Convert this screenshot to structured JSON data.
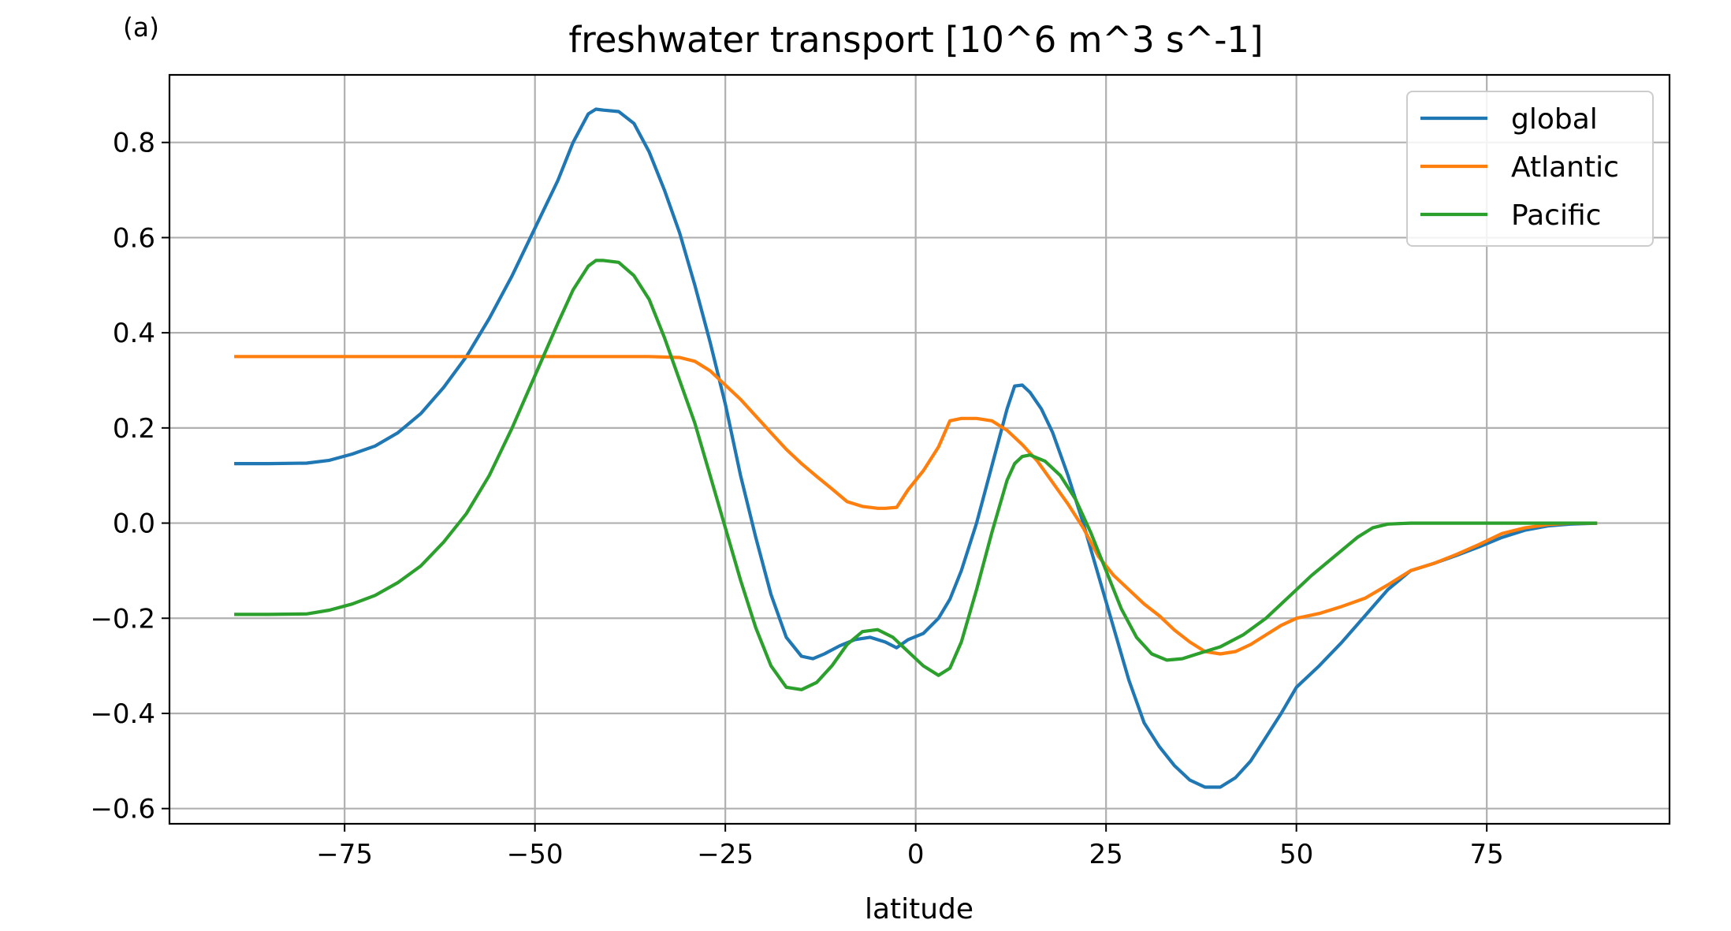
{
  "panel_label": "(a)",
  "chart_data": {
    "type": "line",
    "title": "freshwater transport [10^6 m^3 s^-1]",
    "xlabel": "latitude",
    "ylabel": "",
    "xlim": [
      -98,
      99
    ],
    "ylim": [
      -0.632,
      0.942
    ],
    "xticks": [
      -75,
      -50,
      -25,
      0,
      25,
      50,
      75
    ],
    "yticks": [
      -0.6,
      -0.4,
      -0.2,
      0.0,
      0.2,
      0.4,
      0.6,
      0.8
    ],
    "xtick_labels": [
      "−75",
      "−50",
      "−25",
      "0",
      "25",
      "50",
      "75"
    ],
    "ytick_labels": [
      "−0.6",
      "−0.4",
      "−0.2",
      "0.0",
      "0.2",
      "0.4",
      "0.6",
      "0.8"
    ],
    "grid": true,
    "legend_position": "top-right",
    "series": [
      {
        "name": "global",
        "color": "#1f77b4",
        "points": [
          [
            -89.5,
            0.125
          ],
          [
            -85,
            0.125
          ],
          [
            -80,
            0.126
          ],
          [
            -77,
            0.132
          ],
          [
            -74,
            0.145
          ],
          [
            -71,
            0.162
          ],
          [
            -68,
            0.19
          ],
          [
            -65,
            0.23
          ],
          [
            -62,
            0.285
          ],
          [
            -59,
            0.35
          ],
          [
            -56,
            0.43
          ],
          [
            -53,
            0.52
          ],
          [
            -50,
            0.62
          ],
          [
            -47,
            0.72
          ],
          [
            -45,
            0.8
          ],
          [
            -43,
            0.86
          ],
          [
            -42,
            0.87
          ],
          [
            -41,
            0.868
          ],
          [
            -39,
            0.865
          ],
          [
            -37,
            0.84
          ],
          [
            -35,
            0.78
          ],
          [
            -33,
            0.7
          ],
          [
            -31,
            0.61
          ],
          [
            -29,
            0.5
          ],
          [
            -27,
            0.38
          ],
          [
            -25,
            0.25
          ],
          [
            -23,
            0.1
          ],
          [
            -21,
            -0.03
          ],
          [
            -19,
            -0.15
          ],
          [
            -17,
            -0.24
          ],
          [
            -15,
            -0.28
          ],
          [
            -13.5,
            -0.285
          ],
          [
            -12,
            -0.275
          ],
          [
            -10,
            -0.258
          ],
          [
            -8,
            -0.245
          ],
          [
            -6,
            -0.24
          ],
          [
            -4,
            -0.25
          ],
          [
            -2.5,
            -0.262
          ],
          [
            -1,
            -0.245
          ],
          [
            1,
            -0.232
          ],
          [
            3,
            -0.2
          ],
          [
            4.5,
            -0.16
          ],
          [
            6,
            -0.1
          ],
          [
            8,
            0.0
          ],
          [
            10,
            0.12
          ],
          [
            12,
            0.24
          ],
          [
            13,
            0.288
          ],
          [
            14,
            0.29
          ],
          [
            15,
            0.275
          ],
          [
            16.5,
            0.24
          ],
          [
            18,
            0.19
          ],
          [
            20,
            0.1
          ],
          [
            22,
            0.0
          ],
          [
            24,
            -0.11
          ],
          [
            26,
            -0.22
          ],
          [
            28,
            -0.33
          ],
          [
            30,
            -0.42
          ],
          [
            32,
            -0.47
          ],
          [
            34,
            -0.51
          ],
          [
            36,
            -0.54
          ],
          [
            38,
            -0.555
          ],
          [
            40,
            -0.555
          ],
          [
            42,
            -0.535
          ],
          [
            44,
            -0.5
          ],
          [
            46,
            -0.45
          ],
          [
            48,
            -0.4
          ],
          [
            50,
            -0.345
          ],
          [
            53,
            -0.3
          ],
          [
            56,
            -0.25
          ],
          [
            59,
            -0.195
          ],
          [
            62,
            -0.14
          ],
          [
            65,
            -0.1
          ],
          [
            68,
            -0.085
          ],
          [
            71,
            -0.068
          ],
          [
            74,
            -0.05
          ],
          [
            77,
            -0.03
          ],
          [
            80,
            -0.015
          ],
          [
            83,
            -0.006
          ],
          [
            86,
            -0.002
          ],
          [
            89.5,
            0.0
          ]
        ]
      },
      {
        "name": "Atlantic",
        "color": "#ff7f0e",
        "points": [
          [
            -89.5,
            0.35
          ],
          [
            -80,
            0.35
          ],
          [
            -70,
            0.35
          ],
          [
            -60,
            0.35
          ],
          [
            -50,
            0.35
          ],
          [
            -40,
            0.35
          ],
          [
            -35,
            0.35
          ],
          [
            -31,
            0.348
          ],
          [
            -29,
            0.34
          ],
          [
            -27,
            0.32
          ],
          [
            -25,
            0.29
          ],
          [
            -23,
            0.26
          ],
          [
            -21,
            0.225
          ],
          [
            -19,
            0.19
          ],
          [
            -17,
            0.155
          ],
          [
            -15,
            0.125
          ],
          [
            -13,
            0.098
          ],
          [
            -11,
            0.072
          ],
          [
            -9,
            0.045
          ],
          [
            -7,
            0.035
          ],
          [
            -5,
            0.031
          ],
          [
            -4,
            0.031
          ],
          [
            -2.5,
            0.033
          ],
          [
            -1,
            0.07
          ],
          [
            1,
            0.11
          ],
          [
            3,
            0.16
          ],
          [
            4.5,
            0.215
          ],
          [
            6,
            0.22
          ],
          [
            8,
            0.22
          ],
          [
            10,
            0.215
          ],
          [
            12,
            0.195
          ],
          [
            14,
            0.165
          ],
          [
            16,
            0.13
          ],
          [
            18,
            0.085
          ],
          [
            20,
            0.04
          ],
          [
            22,
            -0.01
          ],
          [
            24,
            -0.07
          ],
          [
            26,
            -0.11
          ],
          [
            28,
            -0.14
          ],
          [
            30,
            -0.17
          ],
          [
            32,
            -0.195
          ],
          [
            34,
            -0.225
          ],
          [
            36,
            -0.25
          ],
          [
            38,
            -0.27
          ],
          [
            40,
            -0.275
          ],
          [
            42,
            -0.27
          ],
          [
            44,
            -0.255
          ],
          [
            46,
            -0.235
          ],
          [
            48,
            -0.215
          ],
          [
            50,
            -0.2
          ],
          [
            53,
            -0.19
          ],
          [
            56,
            -0.175
          ],
          [
            59,
            -0.158
          ],
          [
            62,
            -0.13
          ],
          [
            65,
            -0.1
          ],
          [
            68,
            -0.085
          ],
          [
            71,
            -0.066
          ],
          [
            74,
            -0.045
          ],
          [
            77,
            -0.022
          ],
          [
            80,
            -0.01
          ],
          [
            83,
            -0.003
          ],
          [
            86,
            0.0
          ],
          [
            89.5,
            0.0
          ]
        ]
      },
      {
        "name": "Pacific",
        "color": "#2ca02c",
        "points": [
          [
            -89.5,
            -0.192
          ],
          [
            -85,
            -0.192
          ],
          [
            -80,
            -0.191
          ],
          [
            -77,
            -0.183
          ],
          [
            -74,
            -0.17
          ],
          [
            -71,
            -0.152
          ],
          [
            -68,
            -0.125
          ],
          [
            -65,
            -0.09
          ],
          [
            -62,
            -0.04
          ],
          [
            -59,
            0.02
          ],
          [
            -56,
            0.1
          ],
          [
            -53,
            0.2
          ],
          [
            -50,
            0.31
          ],
          [
            -47,
            0.42
          ],
          [
            -45,
            0.49
          ],
          [
            -43,
            0.54
          ],
          [
            -42,
            0.552
          ],
          [
            -41,
            0.552
          ],
          [
            -39,
            0.548
          ],
          [
            -37,
            0.52
          ],
          [
            -35,
            0.47
          ],
          [
            -33,
            0.39
          ],
          [
            -31,
            0.3
          ],
          [
            -29,
            0.21
          ],
          [
            -27,
            0.1
          ],
          [
            -25,
            -0.01
          ],
          [
            -23,
            -0.12
          ],
          [
            -21,
            -0.22
          ],
          [
            -19,
            -0.3
          ],
          [
            -17,
            -0.345
          ],
          [
            -15,
            -0.35
          ],
          [
            -13,
            -0.335
          ],
          [
            -11,
            -0.3
          ],
          [
            -9,
            -0.255
          ],
          [
            -7,
            -0.228
          ],
          [
            -5,
            -0.224
          ],
          [
            -3,
            -0.24
          ],
          [
            -1,
            -0.27
          ],
          [
            1,
            -0.3
          ],
          [
            3,
            -0.32
          ],
          [
            4.5,
            -0.305
          ],
          [
            6,
            -0.25
          ],
          [
            8,
            -0.14
          ],
          [
            10,
            -0.02
          ],
          [
            12,
            0.09
          ],
          [
            13,
            0.125
          ],
          [
            14,
            0.14
          ],
          [
            15,
            0.143
          ],
          [
            17,
            0.13
          ],
          [
            19,
            0.1
          ],
          [
            21,
            0.05
          ],
          [
            23,
            -0.02
          ],
          [
            25,
            -0.1
          ],
          [
            27,
            -0.18
          ],
          [
            29,
            -0.24
          ],
          [
            31,
            -0.275
          ],
          [
            33,
            -0.288
          ],
          [
            35,
            -0.285
          ],
          [
            37,
            -0.275
          ],
          [
            40,
            -0.26
          ],
          [
            43,
            -0.235
          ],
          [
            46,
            -0.2
          ],
          [
            49,
            -0.155
          ],
          [
            52,
            -0.11
          ],
          [
            55,
            -0.07
          ],
          [
            58,
            -0.03
          ],
          [
            60,
            -0.01
          ],
          [
            62,
            -0.002
          ],
          [
            65,
            0.0
          ],
          [
            70,
            0.0
          ],
          [
            80,
            0.0
          ],
          [
            89.5,
            0.0
          ]
        ]
      }
    ]
  }
}
